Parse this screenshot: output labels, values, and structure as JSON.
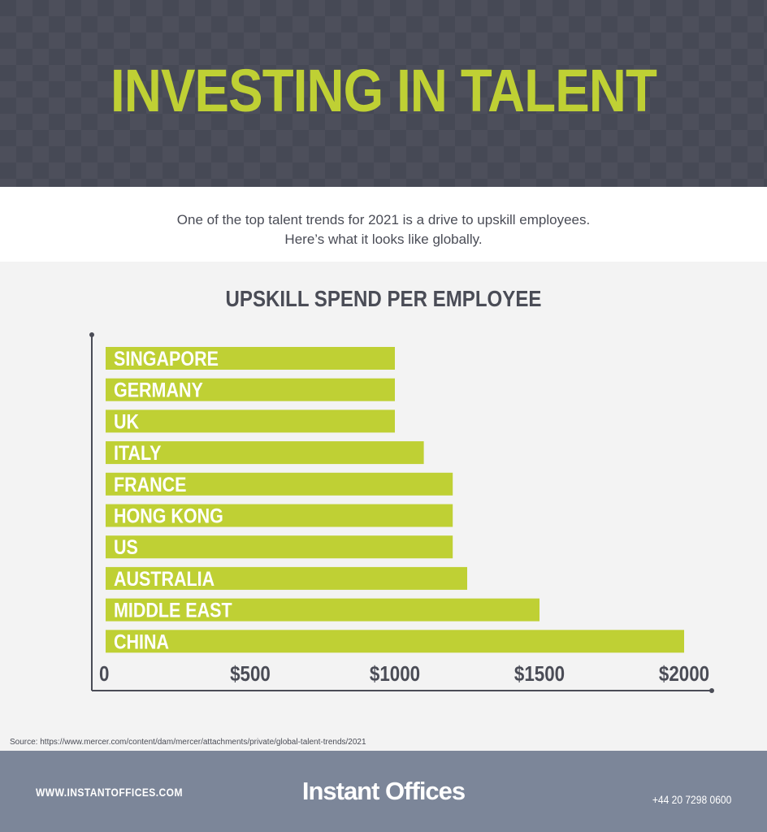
{
  "header": {
    "title": "INVESTING IN TALENT"
  },
  "intro": {
    "line1": "One of the top talent trends for 2021 is a drive to upskill employees.",
    "line2": "Here’s what it looks like globally."
  },
  "colors": {
    "accent": "#bfd034",
    "header_bg": "#464955",
    "footer_bg": "#7c8699",
    "text_dark": "#4a4c56",
    "chart_bg": "#f3f3f3"
  },
  "chart_data": {
    "type": "bar",
    "orientation": "horizontal",
    "title": "UPSKILL SPEND PER EMPLOYEE",
    "categories": [
      "SINGAPORE",
      "GERMANY",
      "UK",
      "ITALY",
      "FRANCE",
      "HONG KONG",
      "US",
      "AUSTRALIA",
      "MIDDLE EAST",
      "CHINA"
    ],
    "values": [
      1000,
      1000,
      1000,
      1100,
      1200,
      1200,
      1200,
      1250,
      1500,
      2000
    ],
    "xticks": [
      0,
      500,
      1000,
      1500,
      2000
    ],
    "xtick_labels": [
      "0",
      "$500",
      "$1000",
      "$1500",
      "$2000"
    ],
    "xlim": [
      0,
      2000
    ],
    "xlabel": "",
    "ylabel": "",
    "grid": false,
    "bar_color": "#bfd034"
  },
  "source": "Source: https://www.mercer.com/content/dam/mercer/attachments/private/global-talent-trends/2021",
  "footer": {
    "website": "WWW.INSTANTOFFICES.COM",
    "brand": "Instant Offices",
    "phone": "+44 20 7298 0600"
  }
}
